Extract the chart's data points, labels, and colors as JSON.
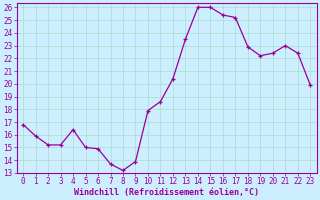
{
  "x": [
    0,
    1,
    2,
    3,
    4,
    5,
    6,
    7,
    8,
    9,
    10,
    11,
    12,
    13,
    14,
    15,
    16,
    17,
    18,
    19,
    20,
    21,
    22,
    23
  ],
  "y": [
    16.8,
    15.9,
    15.2,
    15.2,
    16.4,
    15.0,
    14.9,
    13.7,
    13.2,
    13.9,
    17.9,
    18.6,
    20.4,
    23.5,
    26.0,
    26.0,
    25.4,
    25.2,
    22.9,
    22.2,
    22.4,
    23.0,
    22.4,
    19.9
  ],
  "line_color": "#990099",
  "marker_color": "#990099",
  "bg_color": "#cceeff",
  "grid_color": "#aaddcc",
  "xlabel": "Windchill (Refroidissement éolien,°C)",
  "ylim_min": 13,
  "ylim_max": 26,
  "xlim_min": -0.5,
  "xlim_max": 23.5,
  "yticks": [
    13,
    14,
    15,
    16,
    17,
    18,
    19,
    20,
    21,
    22,
    23,
    24,
    25,
    26
  ],
  "xticks": [
    0,
    1,
    2,
    3,
    4,
    5,
    6,
    7,
    8,
    9,
    10,
    11,
    12,
    13,
    14,
    15,
    16,
    17,
    18,
    19,
    20,
    21,
    22,
    23
  ],
  "tick_fontsize": 5.5,
  "xlabel_fontsize": 6.0
}
